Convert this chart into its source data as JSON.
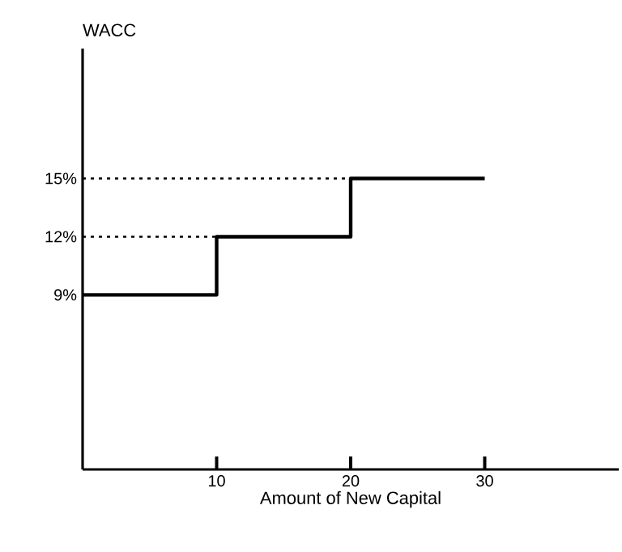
{
  "chart_data": {
    "type": "step",
    "xlabel": "Amount of New Capital",
    "ylabel": "WACC",
    "xlim": [
      0,
      40
    ],
    "ylim": [
      0,
      21.7
    ],
    "xticks": [
      10,
      20,
      30
    ],
    "yticks": [
      {
        "value": 9,
        "label": "9%"
      },
      {
        "value": 12,
        "label": "12%"
      },
      {
        "value": 15,
        "label": "15%"
      }
    ],
    "grid": false,
    "series": [
      {
        "color": "#000000",
        "x": [
          0,
          10,
          20,
          30
        ],
        "values": [
          9,
          12,
          15,
          15
        ]
      },
      {
        "type": "line",
        "color": "#000000",
        "line_style": "dotted",
        "x": [
          0,
          10
        ],
        "values": [
          12,
          12
        ]
      },
      {
        "type": "line",
        "color": "#000000",
        "line_style": "dotted",
        "x": [
          0,
          20
        ],
        "values": [
          15,
          15
        ]
      }
    ]
  }
}
